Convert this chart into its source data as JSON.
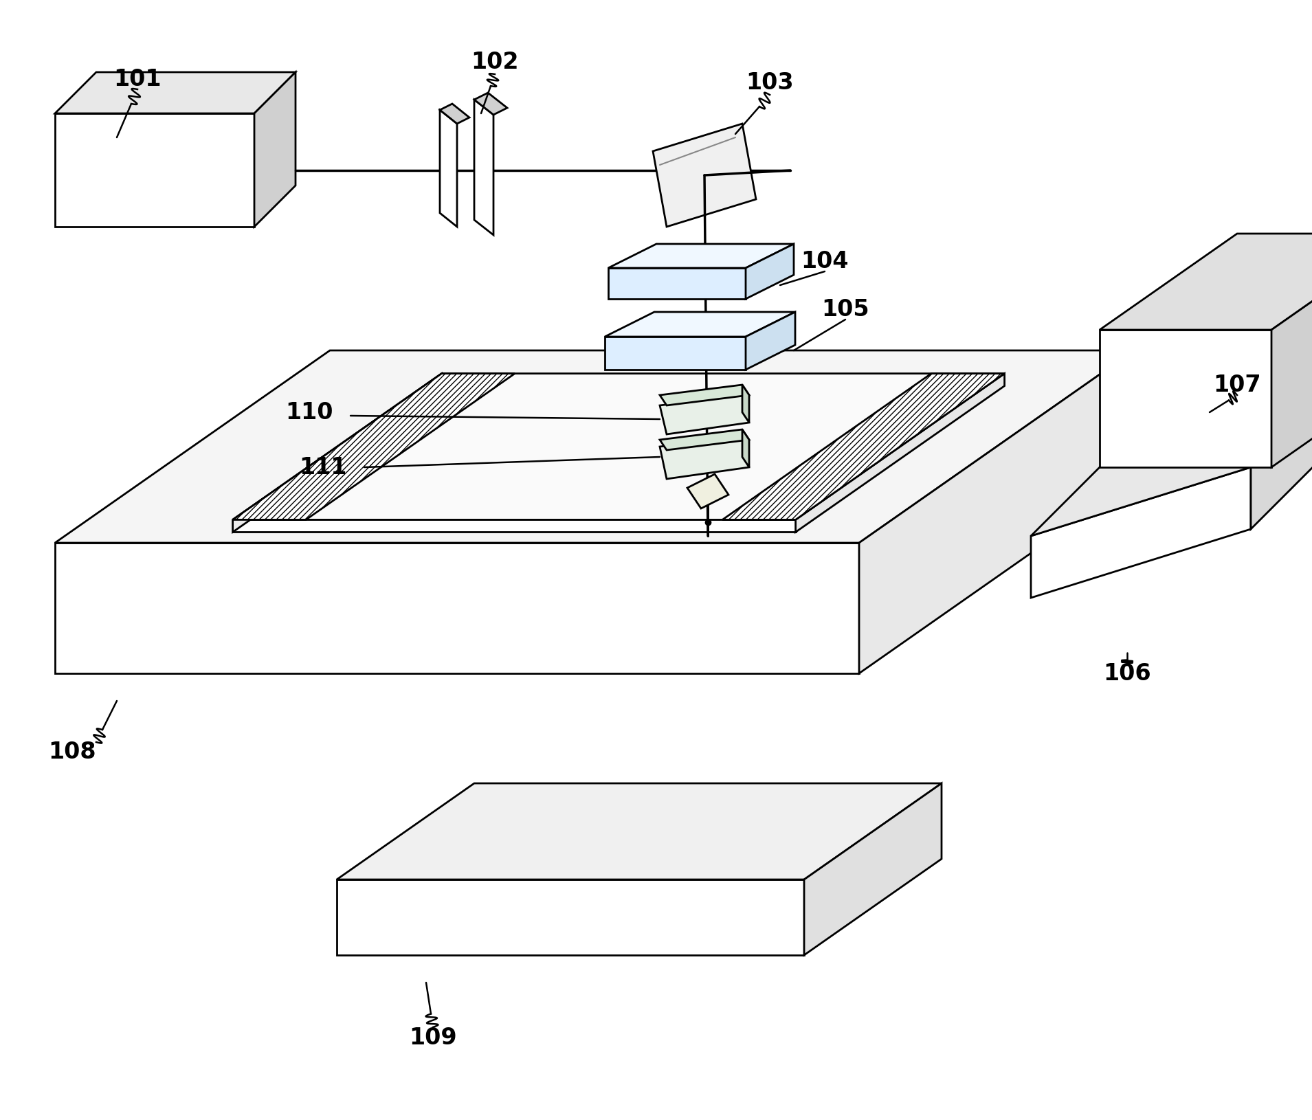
{
  "bg_color": "#ffffff",
  "line_color": "#000000",
  "lw": 2.0,
  "label_fontsize": 24,
  "figsize": [
    19.09,
    16.3
  ],
  "dpi": 100
}
